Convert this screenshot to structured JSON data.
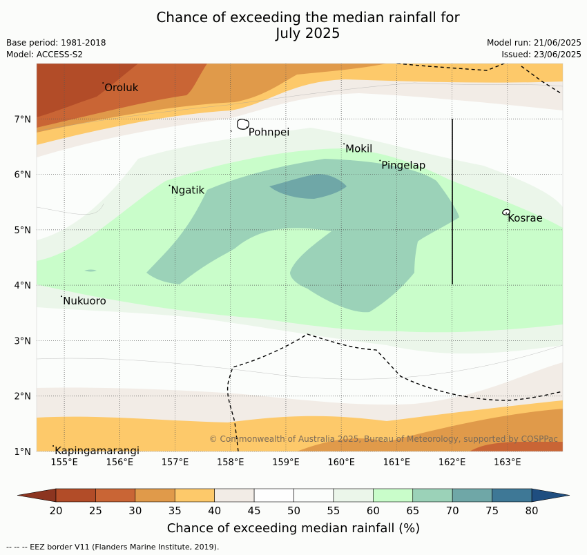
{
  "title_line1": "Chance of exceeding the median rainfall for",
  "title_line2": "July 2025",
  "meta_left": {
    "base_period": "Base period: 1981-2018",
    "model": "Model: ACCESS-S2"
  },
  "meta_right": {
    "model_run": "Model run: 21/06/2025",
    "issued": "Issued: 23/06/2025"
  },
  "map": {
    "lon_ticks": [
      "155°E",
      "156°E",
      "157°E",
      "158°E",
      "159°E",
      "160°E",
      "161°E",
      "162°E",
      "163°E"
    ],
    "lat_ticks": [
      "1°N",
      "2°N",
      "3°N",
      "4°N",
      "5°N",
      "6°N",
      "7°N"
    ],
    "places": [
      {
        "name": "Oroluk",
        "lon": 155.7,
        "lat": 7.65
      },
      {
        "name": "Pohnpei",
        "lon": 158.3,
        "lat": 6.85
      },
      {
        "name": "Mokil",
        "lon": 160.05,
        "lat": 6.55
      },
      {
        "name": "Pingelap",
        "lon": 160.7,
        "lat": 6.25
      },
      {
        "name": "Ngatik",
        "lon": 156.9,
        "lat": 5.8
      },
      {
        "name": "Kosrae",
        "lon": 162.98,
        "lat": 5.3
      },
      {
        "name": "Nukuoro",
        "lon": 154.95,
        "lat": 3.8
      },
      {
        "name": "Kapingamarangi",
        "lon": 154.8,
        "lat": 1.1
      }
    ],
    "copyright": "© Commonwealth of Australia 2025, Bureau of Meteorology, supported by COSPPac"
  },
  "colorbar": {
    "ticks": [
      "20",
      "25",
      "30",
      "35",
      "40",
      "45",
      "50",
      "55",
      "60",
      "65",
      "70",
      "75",
      "80"
    ],
    "colors": [
      "#b24c28",
      "#c96535",
      "#e09a4a",
      "#fdc96a",
      "#f2ece6",
      "#fefefe",
      "#fbfdfb",
      "#ebf6ea",
      "#c9fdca",
      "#9bd2b8",
      "#6fa7a7",
      "#3e7896"
    ],
    "under_color": "#8c3520",
    "over_color": "#1f4e80",
    "label": "Chance of exceeding median rainfall (%)"
  },
  "footer": "--  --  -- EEZ border V11 (Flanders Marine Institute, 2019)."
}
